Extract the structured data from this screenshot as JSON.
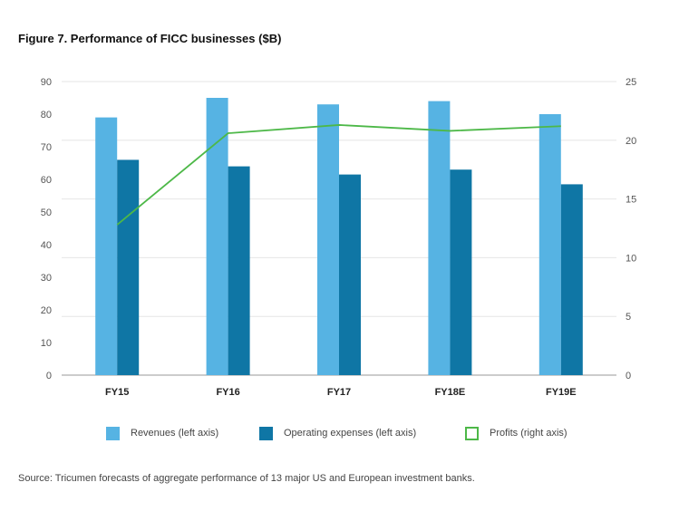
{
  "title": "Figure 7. Performance of FICC businesses ($B)",
  "source": "Source: Tricumen forecasts of aggregate performance of 13 major US and European investment banks.",
  "legend": [
    {
      "label": "Revenues (left axis)",
      "color": "#56b3e3",
      "style": "fill"
    },
    {
      "label": "Operating expenses (left axis)",
      "color": "#0f76a5",
      "style": "fill"
    },
    {
      "label": "Profits (right axis)",
      "color": "#4db848",
      "style": "outline"
    }
  ],
  "chart_data": {
    "type": "bar",
    "title": "Figure 7. Performance of FICC businesses ($B)",
    "categories": [
      "FY15",
      "FY16",
      "FY17",
      "FY18E",
      "FY19E"
    ],
    "series": [
      {
        "name": "Revenues (left axis)",
        "type": "bar",
        "axis": "left",
        "color": "#56b3e3",
        "values": [
          79,
          85,
          83,
          84,
          80
        ]
      },
      {
        "name": "Operating expenses (left axis)",
        "type": "bar",
        "axis": "left",
        "color": "#0f76a5",
        "values": [
          66,
          64,
          61.5,
          63,
          58.5
        ]
      },
      {
        "name": "Profits (right axis)",
        "type": "line",
        "axis": "right",
        "color": "#4db848",
        "values": [
          12.8,
          20.6,
          21.3,
          20.8,
          21.2
        ]
      }
    ],
    "y_left": {
      "min": 0,
      "max": 90,
      "ticks": [
        "0",
        "10",
        "20",
        "30",
        "40",
        "50",
        "60",
        "70",
        "80",
        "90"
      ]
    },
    "y_right": {
      "min": 0,
      "max": 25,
      "ticks": [
        "0",
        "5",
        "10",
        "15",
        "20",
        "25"
      ]
    },
    "grid": true,
    "legend_position": "bottom"
  }
}
